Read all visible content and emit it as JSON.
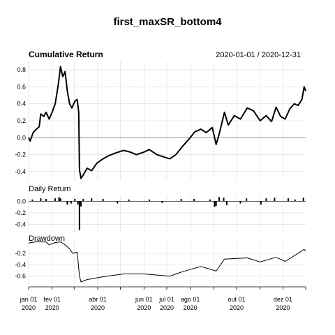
{
  "chart_data": {
    "type": "line",
    "title": "first_maxSR_bottom4",
    "date_range": "2020-01-01 / 2020-12-31",
    "x_ticks": [
      {
        "date": "2020-01-01",
        "label": "jan 01",
        "year": "2020"
      },
      {
        "date": "2020-02-01",
        "label": "fev 01",
        "year": "2020"
      },
      {
        "date": "2020-04-01",
        "label": "abr 01",
        "year": "2020"
      },
      {
        "date": "2020-06-01",
        "label": "jun 01",
        "year": "2020"
      },
      {
        "date": "2020-07-01",
        "label": "jul 01",
        "year": "2020"
      },
      {
        "date": "2020-08-01",
        "label": "ago 01",
        "year": "2020"
      },
      {
        "date": "2020-10-01",
        "label": "out 01",
        "year": "2020"
      },
      {
        "date": "2020-12-01",
        "label": "dez 01",
        "year": "2020"
      }
    ],
    "x_range": [
      "2020-01-01",
      "2020-12-31"
    ],
    "grid": true,
    "panels": [
      {
        "name": "cumulative-return",
        "title": "Cumulative Return",
        "ylim": [
          -0.5,
          0.9
        ],
        "yticks": [
          -0.4,
          -0.2,
          0.0,
          0.2,
          0.4,
          0.6,
          0.8
        ],
        "baseline": 0.0,
        "series": [
          {
            "x": "2020-01-01",
            "y": 0.0
          },
          {
            "x": "2020-01-03",
            "y": -0.04
          },
          {
            "x": "2020-01-07",
            "y": 0.06
          },
          {
            "x": "2020-01-10",
            "y": 0.09
          },
          {
            "x": "2020-01-15",
            "y": 0.13
          },
          {
            "x": "2020-01-17",
            "y": 0.28
          },
          {
            "x": "2020-01-21",
            "y": 0.25
          },
          {
            "x": "2020-01-24",
            "y": 0.3
          },
          {
            "x": "2020-01-28",
            "y": 0.22
          },
          {
            "x": "2020-02-01",
            "y": 0.3
          },
          {
            "x": "2020-02-05",
            "y": 0.4
          },
          {
            "x": "2020-02-09",
            "y": 0.62
          },
          {
            "x": "2020-02-12",
            "y": 0.84
          },
          {
            "x": "2020-02-15",
            "y": 0.72
          },
          {
            "x": "2020-02-18",
            "y": 0.78
          },
          {
            "x": "2020-02-21",
            "y": 0.55
          },
          {
            "x": "2020-02-24",
            "y": 0.4
          },
          {
            "x": "2020-02-27",
            "y": 0.35
          },
          {
            "x": "2020-03-02",
            "y": 0.43
          },
          {
            "x": "2020-03-05",
            "y": 0.45
          },
          {
            "x": "2020-03-07",
            "y": 0.3
          },
          {
            "x": "2020-03-08",
            "y": -0.38
          },
          {
            "x": "2020-03-10",
            "y": -0.48
          },
          {
            "x": "2020-03-13",
            "y": -0.44
          },
          {
            "x": "2020-03-18",
            "y": -0.36
          },
          {
            "x": "2020-03-24",
            "y": -0.39
          },
          {
            "x": "2020-03-31",
            "y": -0.3
          },
          {
            "x": "2020-04-08",
            "y": -0.25
          },
          {
            "x": "2020-04-16",
            "y": -0.21
          },
          {
            "x": "2020-04-25",
            "y": -0.18
          },
          {
            "x": "2020-05-05",
            "y": -0.15
          },
          {
            "x": "2020-05-14",
            "y": -0.17
          },
          {
            "x": "2020-05-22",
            "y": -0.2
          },
          {
            "x": "2020-06-01",
            "y": -0.17
          },
          {
            "x": "2020-06-08",
            "y": -0.14
          },
          {
            "x": "2020-06-18",
            "y": -0.2
          },
          {
            "x": "2020-06-28",
            "y": -0.23
          },
          {
            "x": "2020-07-05",
            "y": -0.25
          },
          {
            "x": "2020-07-13",
            "y": -0.2
          },
          {
            "x": "2020-07-22",
            "y": -0.1
          },
          {
            "x": "2020-07-30",
            "y": -0.02
          },
          {
            "x": "2020-08-07",
            "y": 0.07
          },
          {
            "x": "2020-08-15",
            "y": 0.1
          },
          {
            "x": "2020-08-22",
            "y": 0.06
          },
          {
            "x": "2020-08-30",
            "y": 0.12
          },
          {
            "x": "2020-09-02",
            "y": 0.0
          },
          {
            "x": "2020-09-04",
            "y": -0.08
          },
          {
            "x": "2020-09-08",
            "y": 0.04
          },
          {
            "x": "2020-09-15",
            "y": 0.3
          },
          {
            "x": "2020-09-20",
            "y": 0.15
          },
          {
            "x": "2020-09-28",
            "y": 0.26
          },
          {
            "x": "2020-10-06",
            "y": 0.22
          },
          {
            "x": "2020-10-15",
            "y": 0.35
          },
          {
            "x": "2020-10-23",
            "y": 0.32
          },
          {
            "x": "2020-11-01",
            "y": 0.2
          },
          {
            "x": "2020-11-09",
            "y": 0.26
          },
          {
            "x": "2020-11-16",
            "y": 0.19
          },
          {
            "x": "2020-11-22",
            "y": 0.36
          },
          {
            "x": "2020-11-28",
            "y": 0.25
          },
          {
            "x": "2020-12-04",
            "y": 0.22
          },
          {
            "x": "2020-12-10",
            "y": 0.34
          },
          {
            "x": "2020-12-16",
            "y": 0.4
          },
          {
            "x": "2020-12-21",
            "y": 0.38
          },
          {
            "x": "2020-12-26",
            "y": 0.45
          },
          {
            "x": "2020-12-29",
            "y": 0.6
          },
          {
            "x": "2020-12-31",
            "y": 0.55
          }
        ]
      },
      {
        "name": "daily-return",
        "title": "Daily Return",
        "ylim": [
          -0.55,
          0.1
        ],
        "yticks": [
          -0.4,
          -0.2,
          0.0
        ],
        "series": [
          {
            "x": "2020-01-06",
            "y": 0.03
          },
          {
            "x": "2020-01-17",
            "y": 0.05
          },
          {
            "x": "2020-01-24",
            "y": 0.04
          },
          {
            "x": "2020-02-05",
            "y": 0.05
          },
          {
            "x": "2020-02-10",
            "y": 0.07
          },
          {
            "x": "2020-02-12",
            "y": 0.05
          },
          {
            "x": "2020-02-21",
            "y": -0.06
          },
          {
            "x": "2020-02-26",
            "y": -0.04
          },
          {
            "x": "2020-03-02",
            "y": 0.04
          },
          {
            "x": "2020-03-06",
            "y": -0.06
          },
          {
            "x": "2020-03-08",
            "y": -0.5
          },
          {
            "x": "2020-03-10",
            "y": -0.09
          },
          {
            "x": "2020-03-13",
            "y": 0.04
          },
          {
            "x": "2020-03-24",
            "y": 0.05
          },
          {
            "x": "2020-04-08",
            "y": 0.04
          },
          {
            "x": "2020-04-27",
            "y": -0.04
          },
          {
            "x": "2020-05-12",
            "y": 0.03
          },
          {
            "x": "2020-06-08",
            "y": 0.03
          },
          {
            "x": "2020-06-25",
            "y": -0.03
          },
          {
            "x": "2020-07-20",
            "y": 0.04
          },
          {
            "x": "2020-08-06",
            "y": 0.04
          },
          {
            "x": "2020-08-27",
            "y": 0.03
          },
          {
            "x": "2020-09-02",
            "y": -0.1
          },
          {
            "x": "2020-09-04",
            "y": -0.08
          },
          {
            "x": "2020-09-08",
            "y": 0.07
          },
          {
            "x": "2020-09-14",
            "y": 0.06
          },
          {
            "x": "2020-09-18",
            "y": -0.07
          },
          {
            "x": "2020-10-06",
            "y": -0.04
          },
          {
            "x": "2020-10-14",
            "y": 0.05
          },
          {
            "x": "2020-11-02",
            "y": -0.06
          },
          {
            "x": "2020-11-09",
            "y": 0.05
          },
          {
            "x": "2020-11-20",
            "y": 0.06
          },
          {
            "x": "2020-12-08",
            "y": 0.05
          },
          {
            "x": "2020-12-17",
            "y": 0.03
          },
          {
            "x": "2020-12-28",
            "y": 0.06
          }
        ]
      },
      {
        "name": "drawdown",
        "title": "Drawdown",
        "ylim": [
          -0.75,
          0.02
        ],
        "yticks": [
          -0.6,
          -0.4,
          -0.2
        ],
        "series": [
          {
            "x": "2020-01-01",
            "y": -0.02
          },
          {
            "x": "2020-01-10",
            "y": 0.0
          },
          {
            "x": "2020-01-24",
            "y": 0.0
          },
          {
            "x": "2020-01-28",
            "y": -0.05
          },
          {
            "x": "2020-02-05",
            "y": -0.01
          },
          {
            "x": "2020-02-12",
            "y": 0.0
          },
          {
            "x": "2020-02-18",
            "y": -0.05
          },
          {
            "x": "2020-02-24",
            "y": -0.12
          },
          {
            "x": "2020-02-28",
            "y": -0.2
          },
          {
            "x": "2020-03-05",
            "y": -0.18
          },
          {
            "x": "2020-03-08",
            "y": -0.6
          },
          {
            "x": "2020-03-10",
            "y": -0.7
          },
          {
            "x": "2020-03-18",
            "y": -0.66
          },
          {
            "x": "2020-04-08",
            "y": -0.61
          },
          {
            "x": "2020-05-05",
            "y": -0.56
          },
          {
            "x": "2020-06-01",
            "y": -0.56
          },
          {
            "x": "2020-06-18",
            "y": -0.58
          },
          {
            "x": "2020-07-05",
            "y": -0.6
          },
          {
            "x": "2020-07-22",
            "y": -0.52
          },
          {
            "x": "2020-08-15",
            "y": -0.43
          },
          {
            "x": "2020-09-04",
            "y": -0.51
          },
          {
            "x": "2020-09-15",
            "y": -0.3
          },
          {
            "x": "2020-10-15",
            "y": -0.28
          },
          {
            "x": "2020-11-01",
            "y": -0.35
          },
          {
            "x": "2020-11-22",
            "y": -0.27
          },
          {
            "x": "2020-12-04",
            "y": -0.34
          },
          {
            "x": "2020-12-16",
            "y": -0.24
          },
          {
            "x": "2020-12-29",
            "y": -0.13
          },
          {
            "x": "2020-12-31",
            "y": -0.16
          }
        ]
      }
    ]
  }
}
